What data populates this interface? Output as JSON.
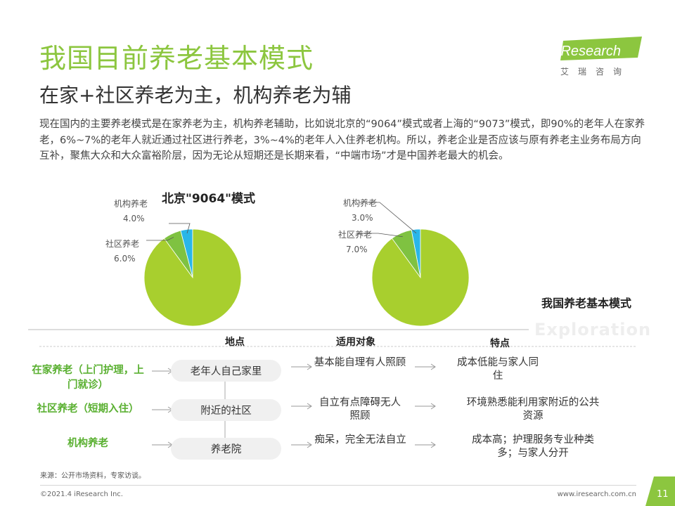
{
  "header": {
    "title": "我国目前养老基本模式",
    "subtitle": "在家+社区养老为主，机构养老为辅",
    "logo_text": "iResearch",
    "logo_tagline": "艾瑞咨询"
  },
  "intro": "现在国内的主要养老模式是在家养老为主，机构养老辅助，比如说北京的“9064”模式或者上海的“9073”模式，即90%的老年人在家养老，6%~7%的老年人就近通过社区进行养老，3%~4%的老年人入住养老机构。所以，养老企业是否应该与原有养老主业务布局方向互补，聚焦大众和大众富裕阶层，因为无论从短期还是长期来看，“中端市场”才是中国养老最大的机会。",
  "chart_data": [
    {
      "type": "pie",
      "title": "北京\"9064\"模式",
      "slices": [
        {
          "label": "机构养老",
          "value": 4.0,
          "display": "4.0%",
          "color": "#29b6e8"
        },
        {
          "label": "社区养老",
          "value": 6.0,
          "display": "6.0%",
          "color": "#7fc241"
        },
        {
          "label": "在家养老",
          "value": 90.0,
          "display": "",
          "color": "#a8cf2e"
        }
      ]
    },
    {
      "type": "pie",
      "title": "",
      "slices": [
        {
          "label": "机构养老",
          "value": 3.0,
          "display": "3.0%",
          "color": "#29b6e8"
        },
        {
          "label": "社区养老",
          "value": 7.0,
          "display": "7.0%",
          "color": "#7fc241"
        },
        {
          "label": "在家养老",
          "value": 90.0,
          "display": "",
          "color": "#a8cf2e"
        }
      ]
    }
  ],
  "model": {
    "title": "我国养老基本模式",
    "watermark": "Exploration",
    "columns": [
      "地点",
      "适用对象",
      "特点"
    ],
    "rows": [
      {
        "mode": "在家养老（上门护理，上门就诊）",
        "place": "老年人自己家里",
        "target": "基本能自理有人照顾",
        "feature": "成本低能与家人同住"
      },
      {
        "mode": "社区养老（短期入住）",
        "place": "附近的社区",
        "target": "自立有点障碍无人照顾",
        "feature": "环境熟悉能利用家附近的公共资源"
      },
      {
        "mode": "机构养老",
        "place": "养老院",
        "target": "痴呆，完全无法自立",
        "feature": "成本高；护理服务专业种类多；与家人分开"
      }
    ]
  },
  "footer": {
    "source": "来源：公开市场资料，专家访谈。",
    "copyright": "©2021.4 iResearch Inc.",
    "website": "www.iresearch.com.cn",
    "page": "11"
  },
  "colors": {
    "accent": "#8cc63f",
    "row_label": "#5ab031"
  }
}
